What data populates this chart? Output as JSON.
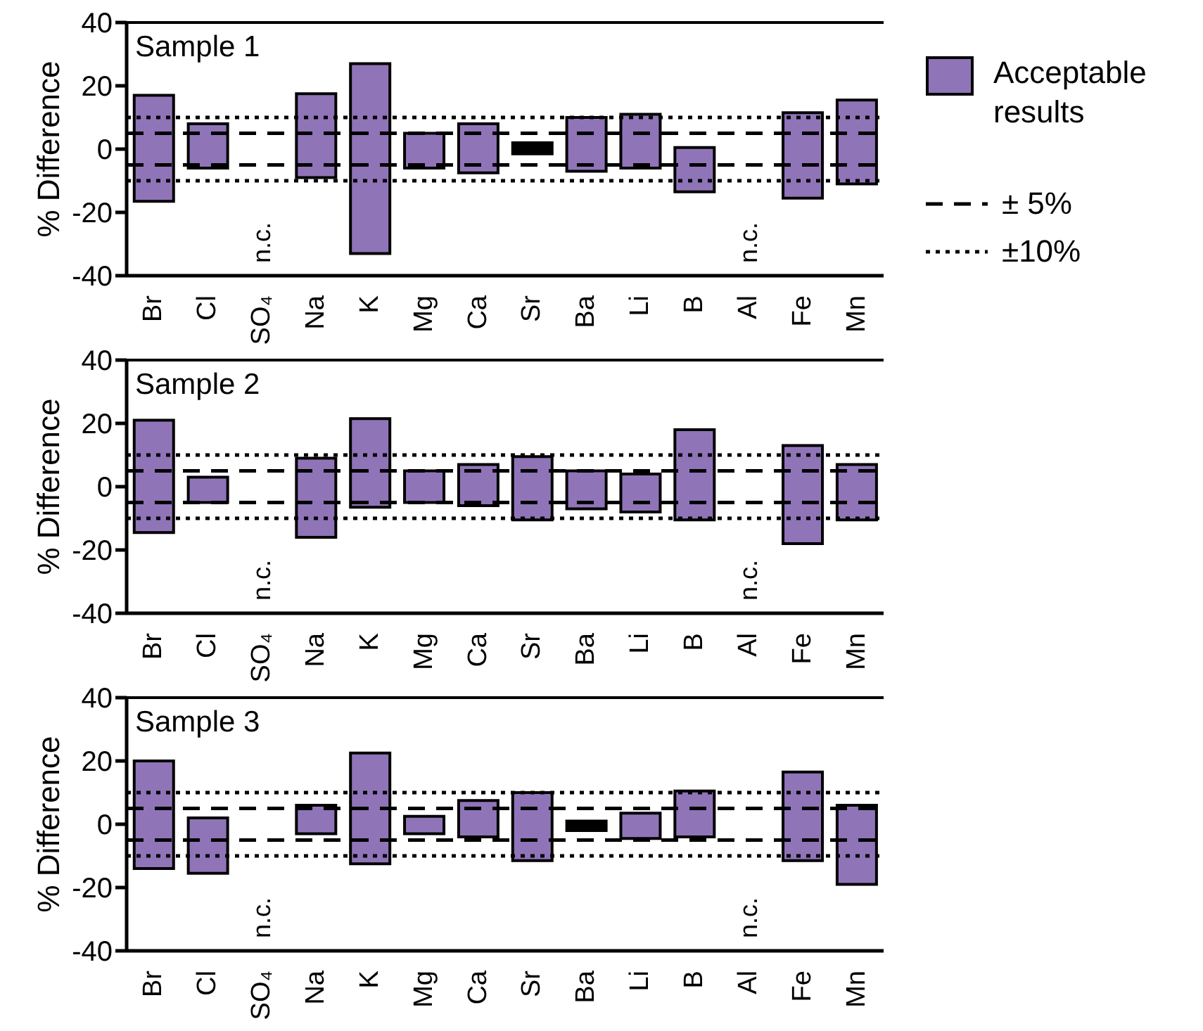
{
  "chart_data": [
    {
      "type": "bar",
      "title": "Sample 1",
      "ylabel": "% Difference",
      "categories": [
        "Br",
        "Cl",
        "SO₄",
        "Na",
        "K",
        "Mg",
        "Ca",
        "Sr",
        "Ba",
        "Li",
        "B",
        "Al",
        "Fe",
        "Mn"
      ],
      "series": [
        {
          "name": "Acceptable results",
          "color": "#9074b8",
          "colors": [
            "#9074b8",
            "#9074b8",
            "#9074b8",
            "#9074b8",
            "#9074b8",
            "#9074b8",
            "#9074b8",
            "#000000",
            "#9074b8",
            "#9074b8",
            "#9074b8",
            "#9074b8",
            "#9074b8",
            "#9074b8"
          ],
          "base": [
            -16.5,
            -6,
            null,
            -9,
            -33,
            -6,
            -7.5,
            -1.5,
            -7,
            -6,
            -13.5,
            null,
            -15.5,
            -11
          ],
          "values": [
            33.5,
            14,
            null,
            26.5,
            60,
            11,
            15.5,
            3.5,
            17,
            17,
            14,
            null,
            27,
            26.5
          ]
        }
      ],
      "ylim": [
        -40,
        40
      ],
      "yticks": [
        -40,
        -20,
        0,
        20,
        40
      ],
      "grid": false,
      "legend": "right",
      "ref_lines": [
        {
          "axis": "y",
          "value": 5,
          "label": "± 5%",
          "line_style": "dashed"
        },
        {
          "axis": "y",
          "value": -5,
          "line_style": "dashed"
        },
        {
          "axis": "y",
          "value": 10,
          "label": "±10%",
          "line_style": "dotted"
        },
        {
          "axis": "y",
          "value": -10,
          "line_style": "dotted"
        }
      ],
      "annotations": [
        "n.c.",
        "n.c."
      ]
    },
    {
      "type": "bar",
      "title": "Sample 2",
      "ylabel": "% Difference",
      "categories": [
        "Br",
        "Cl",
        "SO₄",
        "Na",
        "K",
        "Mg",
        "Ca",
        "Sr",
        "Ba",
        "Li",
        "B",
        "Al",
        "Fe",
        "Mn"
      ],
      "series": [
        {
          "color": "#9074b8",
          "base": [
            -14.5,
            -5,
            null,
            -16,
            -6.5,
            -5,
            -6,
            -10.5,
            -7,
            -8,
            -10.5,
            null,
            -18,
            -10.5
          ],
          "values": [
            35.5,
            8,
            null,
            25,
            28,
            10,
            13,
            20,
            12,
            12,
            28.5,
            null,
            31,
            17.5
          ]
        }
      ],
      "ylim": [
        -40,
        40
      ],
      "yticks": [
        -40,
        -20,
        0,
        20,
        40
      ],
      "grid": false,
      "ref_lines": [
        {
          "axis": "y",
          "value": 5,
          "line_style": "dashed"
        },
        {
          "axis": "y",
          "value": -5,
          "line_style": "dashed"
        },
        {
          "axis": "y",
          "value": 10,
          "line_style": "dotted"
        },
        {
          "axis": "y",
          "value": -10,
          "line_style": "dotted"
        }
      ],
      "annotations": [
        "n.c.",
        "n.c."
      ]
    },
    {
      "type": "bar",
      "title": "Sample 3",
      "ylabel": "% Difference",
      "categories": [
        "Br",
        "Cl",
        "SO₄",
        "Na",
        "K",
        "Mg",
        "Ca",
        "Sr",
        "Ba",
        "Li",
        "B",
        "Al",
        "Fe",
        "Mn"
      ],
      "series": [
        {
          "color": "#9074b8",
          "colors": [
            "#9074b8",
            "#9074b8",
            "#9074b8",
            "#9074b8",
            "#9074b8",
            "#9074b8",
            "#9074b8",
            "#9074b8",
            "#000000",
            "#9074b8",
            "#9074b8",
            "#9074b8",
            "#9074b8",
            "#9074b8"
          ],
          "base": [
            -14,
            -15.5,
            null,
            -3,
            -12.5,
            -3,
            -4,
            -11.5,
            -2,
            -4.5,
            -4,
            null,
            -11.5,
            -19
          ],
          "values": [
            34,
            17.5,
            null,
            9,
            35,
            5.5,
            11.5,
            21.5,
            3,
            8,
            14.5,
            null,
            28,
            25
          ]
        }
      ],
      "ylim": [
        -40,
        40
      ],
      "yticks": [
        -40,
        -20,
        0,
        20,
        40
      ],
      "grid": false,
      "ref_lines": [
        {
          "axis": "y",
          "value": 5,
          "line_style": "dashed"
        },
        {
          "axis": "y",
          "value": -5,
          "line_style": "dashed"
        },
        {
          "axis": "y",
          "value": 10,
          "line_style": "dotted"
        },
        {
          "axis": "y",
          "value": -10,
          "line_style": "dotted"
        }
      ],
      "annotations": [
        "n.c.",
        "n.c."
      ]
    }
  ]
}
